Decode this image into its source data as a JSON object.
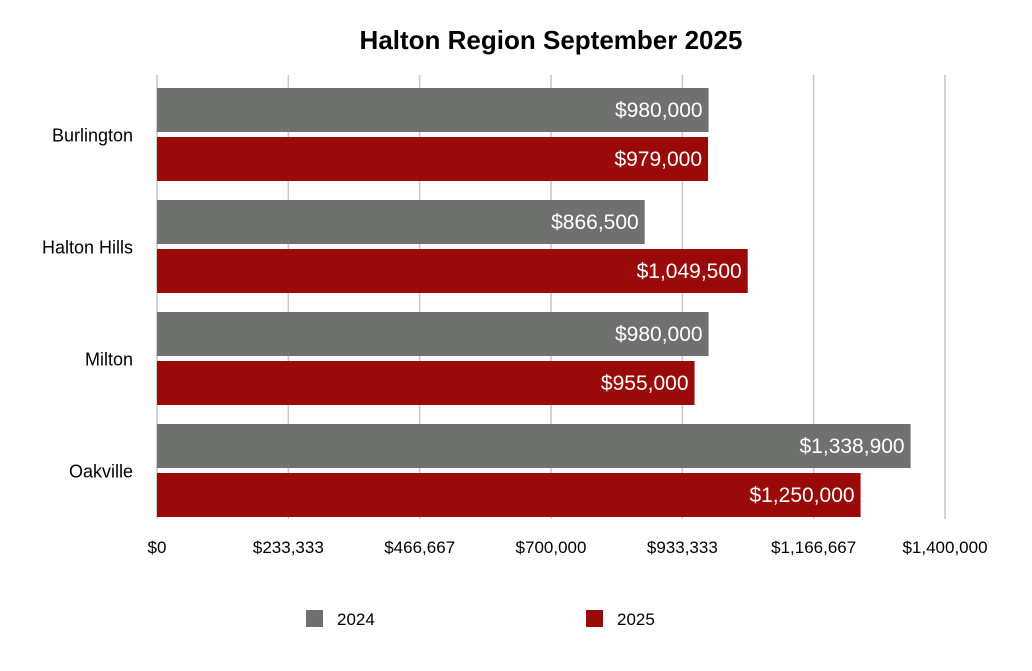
{
  "chart_data": {
    "type": "bar",
    "orientation": "horizontal",
    "title": "Halton Region September 2025",
    "categories": [
      "Burlington",
      "Halton Hills",
      "Milton",
      "Oakville"
    ],
    "series": [
      {
        "name": "2024",
        "color": "#6f716f",
        "values": [
          980000,
          866500,
          980000,
          1338900
        ],
        "labels": [
          "$980,000",
          "$866,500",
          "$980,000",
          "$1,338,900"
        ]
      },
      {
        "name": "2025",
        "color": "#9b0a0a",
        "values": [
          979000,
          1049500,
          955000,
          1250000
        ],
        "labels": [
          "$979,000",
          "$1,049,500",
          "$955,000",
          "$1,250,000"
        ]
      }
    ],
    "xlim": [
      0,
      1400000
    ],
    "xticks": [
      0,
      233333,
      466667,
      700000,
      933333,
      1166667,
      1400000
    ],
    "xtick_labels": [
      "$0",
      "$233,333",
      "$466,667",
      "$700,000",
      "$933,333",
      "$1,166,667",
      "$1,400,000"
    ],
    "grid": true,
    "legend_position": "bottom"
  }
}
